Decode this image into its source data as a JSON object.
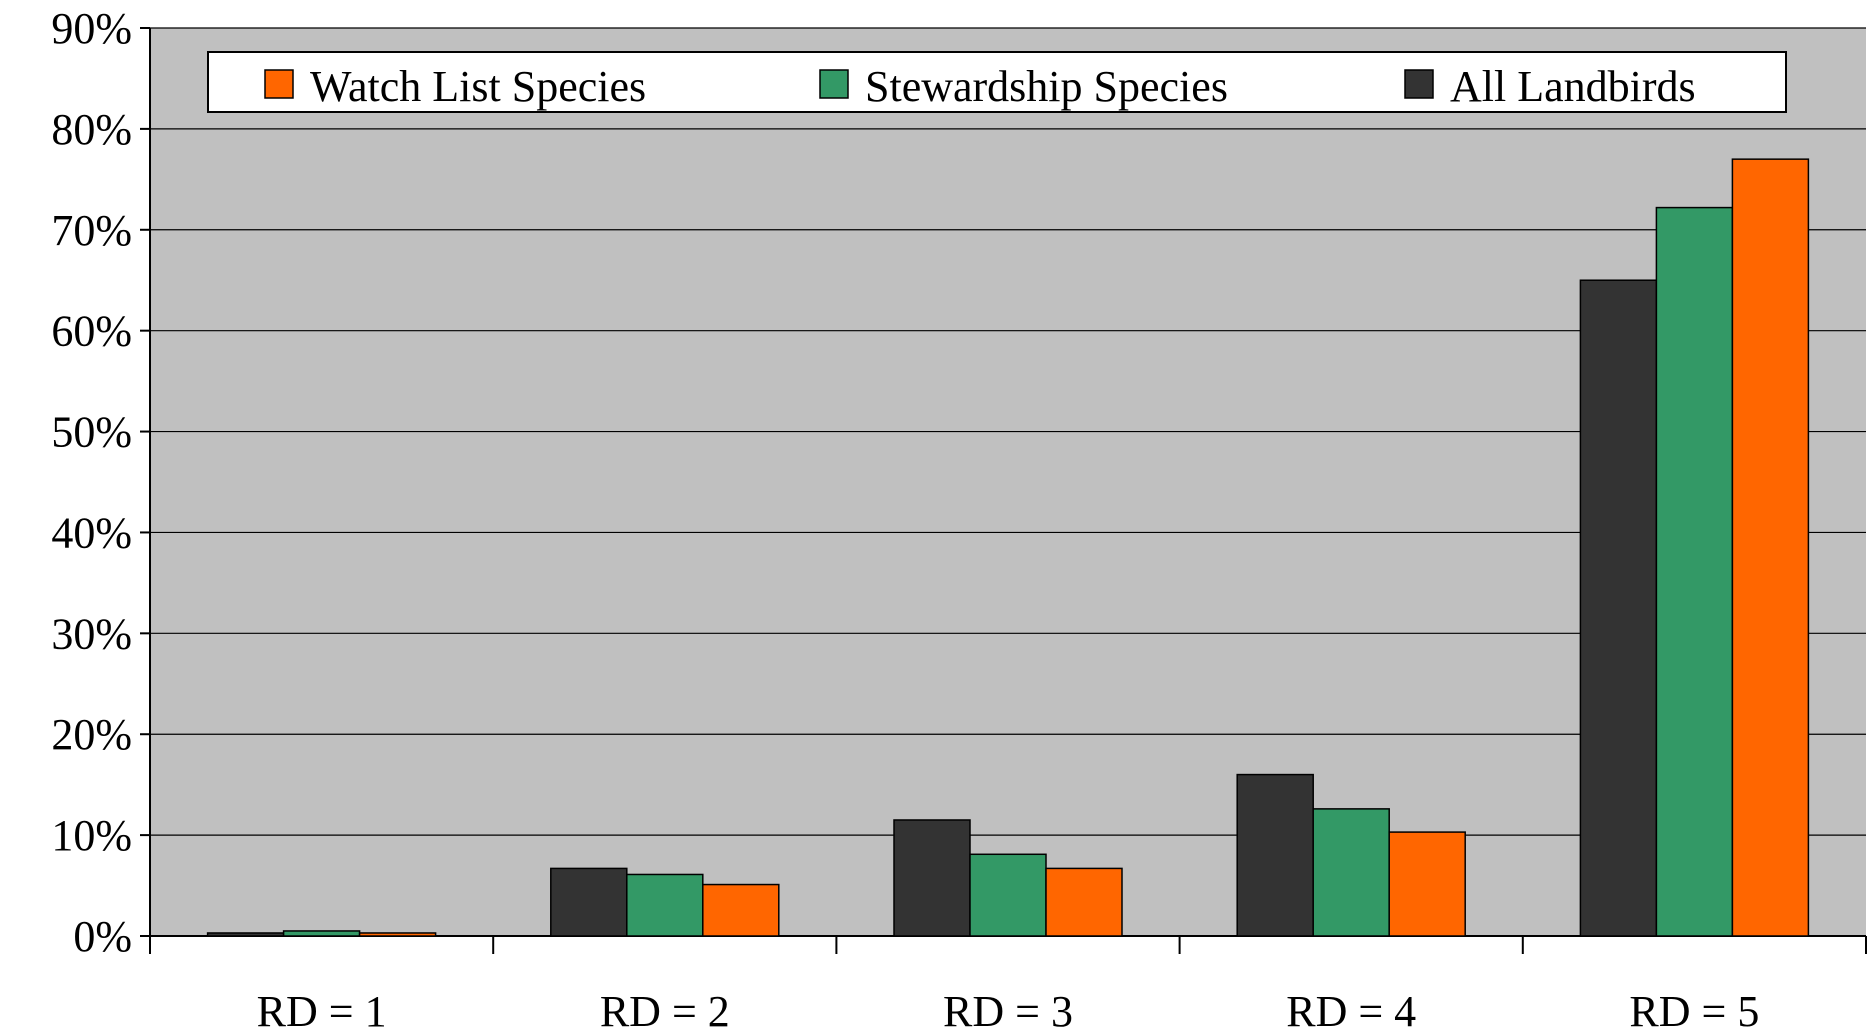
{
  "chart_data": {
    "type": "bar",
    "title": "",
    "xlabel": "",
    "ylabel": "",
    "ylim": [
      0,
      90
    ],
    "y_tick_format": "percent",
    "y_ticks": [
      "0%",
      "10%",
      "20%",
      "30%",
      "40%",
      "50%",
      "60%",
      "70%",
      "80%",
      "90%"
    ],
    "categories": [
      "RD = 1",
      "RD = 2",
      "RD = 3",
      "RD = 4",
      "RD = 5"
    ],
    "series": [
      {
        "name": "All Landbirds",
        "color": "#333333",
        "values": [
          0.3,
          6.7,
          11.5,
          16.0,
          65.0
        ]
      },
      {
        "name": "Stewardship Species",
        "color": "#339966",
        "values": [
          0.5,
          6.1,
          8.1,
          12.6,
          72.2
        ]
      },
      {
        "name": "Watch List Species",
        "color": "#ff6600",
        "values": [
          0.3,
          5.1,
          6.7,
          10.3,
          77.0
        ]
      }
    ],
    "legend": {
      "placement": "top",
      "order": [
        "Watch List Species",
        "Stewardship Species",
        "All Landbirds"
      ]
    },
    "grid": true,
    "plot_background": "#c0c0c0"
  }
}
